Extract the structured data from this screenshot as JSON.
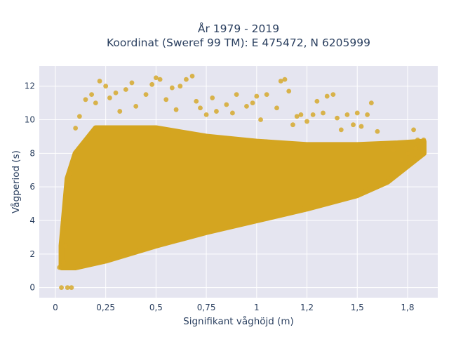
{
  "chart_data": {
    "type": "scatter",
    "title": [
      "År 1979 - 2019",
      "Koordinat (Sweref 99 TM): E 475472, N 6205999"
    ],
    "xlabel": "Signifikant våghöjd (m)",
    "ylabel": "Vågperiod (s)",
    "xlim": [
      -0.08,
      1.9
    ],
    "ylim": [
      -0.6,
      13.2
    ],
    "x_ticks": [
      0,
      0.25,
      0.5,
      0.75,
      1,
      1.25,
      1.5,
      1.75
    ],
    "x_tick_labels": [
      "0",
      "0,25",
      "0,5",
      "0,75",
      "1",
      "1,2",
      "1,5",
      "1,8"
    ],
    "y_ticks": [
      0,
      2,
      4,
      6,
      8,
      10,
      12
    ],
    "y_tick_labels": [
      "0",
      "2",
      "4",
      "6",
      "8",
      "10",
      "12"
    ],
    "grid": true,
    "colors": {
      "marker": "#d4a520",
      "plot_bg": "#e5e5f0",
      "grid": "#ffffff"
    },
    "dense_region": {
      "x_min": 0.03,
      "x_max": 1.83,
      "lower_boundary": [
        [
          0.03,
          1.2
        ],
        [
          0.1,
          1.2
        ],
        [
          0.25,
          1.6
        ],
        [
          0.5,
          2.5
        ],
        [
          0.75,
          3.3
        ],
        [
          1,
          4.0
        ],
        [
          1.25,
          4.7
        ],
        [
          1.5,
          5.5
        ],
        [
          1.65,
          6.3
        ],
        [
          1.83,
          8.0
        ]
      ],
      "upper_boundary": [
        [
          0.03,
          2.5
        ],
        [
          0.06,
          6.5
        ],
        [
          0.1,
          8.0
        ],
        [
          0.2,
          9.5
        ],
        [
          0.5,
          9.5
        ],
        [
          0.75,
          9.0
        ],
        [
          1,
          8.7
        ],
        [
          1.25,
          8.5
        ],
        [
          1.5,
          8.5
        ],
        [
          1.7,
          8.6
        ],
        [
          1.83,
          8.7
        ]
      ]
    },
    "points": [
      [
        0.03,
        0.0
      ],
      [
        0.06,
        0.0
      ],
      [
        0.08,
        0.0
      ],
      [
        0.02,
        1.2
      ],
      [
        0.04,
        1.5
      ],
      [
        0.05,
        2.5
      ],
      [
        0.07,
        6.8
      ],
      [
        0.1,
        7.8
      ],
      [
        0.1,
        9.5
      ],
      [
        0.12,
        10.2
      ],
      [
        0.15,
        11.2
      ],
      [
        0.18,
        11.5
      ],
      [
        0.2,
        11.0
      ],
      [
        0.22,
        12.3
      ],
      [
        0.25,
        12.0
      ],
      [
        0.27,
        11.3
      ],
      [
        0.3,
        11.6
      ],
      [
        0.32,
        10.5
      ],
      [
        0.35,
        11.8
      ],
      [
        0.38,
        12.2
      ],
      [
        0.4,
        10.8
      ],
      [
        0.45,
        11.5
      ],
      [
        0.48,
        12.1
      ],
      [
        0.5,
        12.5
      ],
      [
        0.52,
        12.4
      ],
      [
        0.55,
        11.2
      ],
      [
        0.58,
        11.9
      ],
      [
        0.6,
        10.6
      ],
      [
        0.62,
        12.0
      ],
      [
        0.65,
        12.4
      ],
      [
        0.68,
        12.6
      ],
      [
        0.7,
        11.1
      ],
      [
        0.72,
        10.7
      ],
      [
        0.75,
        10.3
      ],
      [
        0.78,
        11.3
      ],
      [
        0.8,
        10.5
      ],
      [
        0.85,
        10.9
      ],
      [
        0.88,
        10.4
      ],
      [
        0.9,
        11.5
      ],
      [
        0.95,
        10.8
      ],
      [
        0.98,
        11.0
      ],
      [
        1.0,
        11.4
      ],
      [
        1.02,
        10.0
      ],
      [
        1.05,
        11.5
      ],
      [
        1.1,
        10.7
      ],
      [
        1.12,
        12.3
      ],
      [
        1.14,
        12.4
      ],
      [
        1.16,
        11.7
      ],
      [
        1.18,
        9.7
      ],
      [
        1.2,
        10.2
      ],
      [
        1.22,
        10.3
      ],
      [
        1.25,
        9.9
      ],
      [
        1.28,
        10.3
      ],
      [
        1.3,
        11.1
      ],
      [
        1.33,
        10.4
      ],
      [
        1.35,
        11.4
      ],
      [
        1.38,
        11.5
      ],
      [
        1.4,
        10.1
      ],
      [
        1.42,
        9.4
      ],
      [
        1.45,
        10.3
      ],
      [
        1.48,
        9.7
      ],
      [
        1.5,
        10.4
      ],
      [
        1.52,
        9.6
      ],
      [
        1.55,
        10.3
      ],
      [
        1.57,
        11.0
      ],
      [
        1.6,
        9.3
      ],
      [
        1.63,
        8.4
      ],
      [
        1.68,
        8.2
      ],
      [
        1.72,
        7.6
      ],
      [
        1.75,
        8.0
      ],
      [
        1.78,
        9.4
      ],
      [
        1.8,
        8.8
      ],
      [
        1.83,
        8.8
      ],
      [
        1.79,
        8.3
      ]
    ]
  }
}
